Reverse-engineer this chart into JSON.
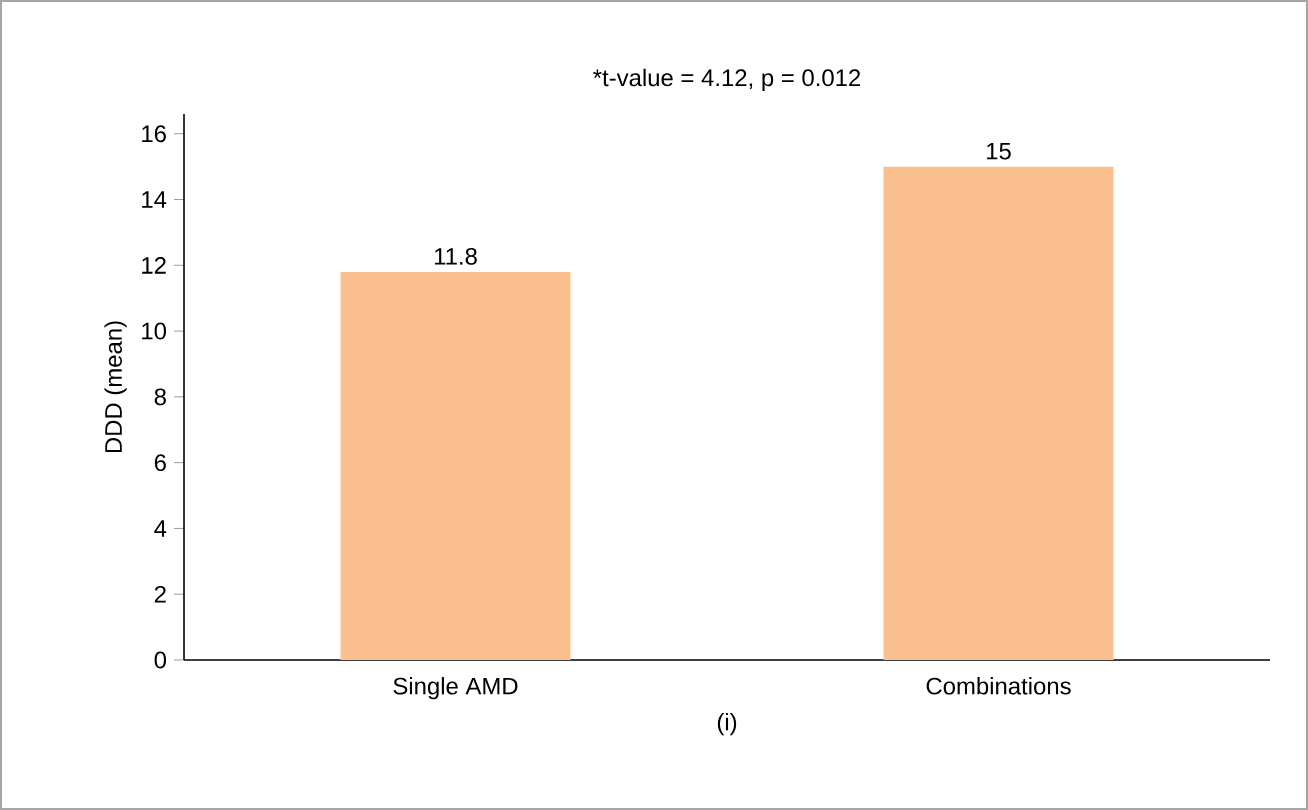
{
  "chart_data": {
    "type": "bar",
    "title": "*t-value = 4.12, p = 0.012",
    "xlabel": "(i)",
    "ylabel": "DDD (mean)",
    "categories": [
      "Single AMD",
      "Combinations"
    ],
    "values": [
      11.8,
      15
    ],
    "color": "#f9bf8f",
    "ylim": [
      0,
      16.6
    ],
    "yticks": [
      0,
      2,
      4,
      6,
      8,
      10,
      12,
      14,
      16
    ],
    "data_labels": true
  }
}
